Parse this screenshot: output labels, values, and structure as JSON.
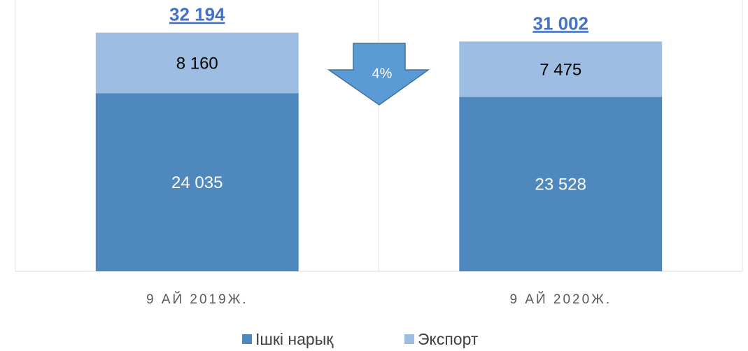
{
  "chart_data": {
    "type": "stacked_bar",
    "categories": [
      "9 АЙ 2019Ж.",
      "9 АЙ 2020Ж."
    ],
    "series": [
      {
        "name": "Ішкі нарық",
        "color": "#4f88bd",
        "values": [
          24035,
          23528
        ],
        "value_labels": [
          "24 035",
          "23 528"
        ]
      },
      {
        "name": "Экспорт",
        "color": "#9dbde2",
        "values": [
          8160,
          7475
        ],
        "value_labels": [
          "8 160",
          "7 475"
        ]
      }
    ],
    "totals": [
      32194,
      31002
    ],
    "total_labels": [
      "32 194",
      "31 002"
    ],
    "annotation": "4%",
    "ylim": [
      0,
      35000
    ]
  }
}
